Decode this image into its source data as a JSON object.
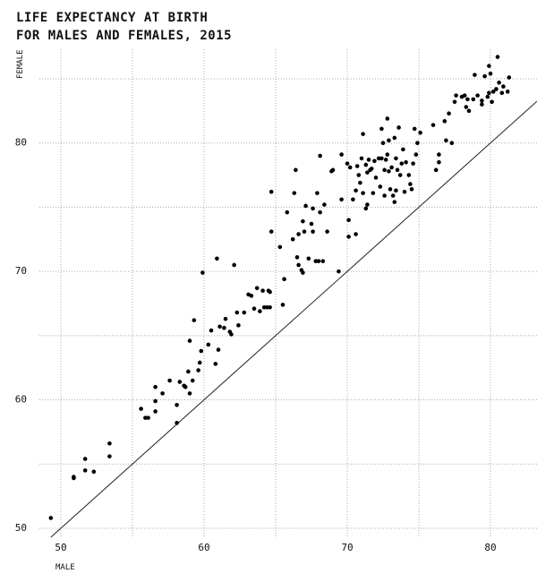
{
  "chart_data": {
    "type": "scatter",
    "title": [
      "LIFE EXPECTANCY AT BIRTH",
      "FOR MALES AND FEMALES, 2015"
    ],
    "x_label": "MALE",
    "y_label": "FEMALE",
    "xlim": [
      48.5,
      83.25
    ],
    "ylim": [
      49.3,
      87.3
    ],
    "xticks": [
      50,
      60,
      70,
      80
    ],
    "yticks": [
      50,
      60,
      70,
      80
    ],
    "grid": true,
    "color": "#000000",
    "x": [
      49.3,
      50.9,
      50.9,
      51.7,
      51.7,
      52.3,
      53.4,
      53.4,
      55.6,
      55.9,
      56.1,
      56.6,
      56.6,
      56.6,
      57.1,
      57.6,
      58.1,
      58.1,
      58.3,
      58.6,
      58.7,
      58.9,
      59.0,
      59.0,
      59.3,
      59.2,
      59.6,
      59.7,
      59.8,
      59.9,
      60.3,
      60.5,
      60.8,
      60.9,
      61.0,
      61.1,
      61.4,
      61.5,
      61.8,
      61.9,
      62.1,
      62.3,
      62.4,
      62.8,
      63.1,
      63.3,
      63.5,
      63.7,
      63.9,
      64.1,
      64.2,
      64.4,
      64.5,
      64.6,
      64.6,
      64.7,
      64.7,
      65.3,
      65.5,
      65.6,
      65.8,
      66.2,
      66.3,
      66.4,
      66.5,
      66.6,
      66.6,
      66.8,
      66.9,
      66.9,
      67.0,
      67.1,
      67.3,
      67.5,
      67.6,
      67.6,
      67.8,
      67.9,
      68.0,
      68.1,
      68.1,
      68.3,
      68.4,
      68.6,
      68.9,
      69.0,
      69.4,
      69.6,
      69.6,
      70.0,
      70.1,
      70.1,
      70.2,
      70.4,
      70.6,
      70.6,
      70.7,
      70.8,
      70.9,
      71.0,
      71.1,
      71.1,
      71.3,
      71.3,
      71.4,
      71.4,
      71.5,
      71.6,
      71.7,
      71.8,
      71.9,
      72.0,
      72.2,
      72.3,
      72.4,
      72.4,
      72.5,
      72.6,
      72.6,
      72.7,
      72.8,
      72.8,
      72.9,
      72.9,
      73.0,
      73.1,
      73.2,
      73.3,
      73.3,
      73.4,
      73.4,
      73.5,
      73.6,
      73.7,
      73.8,
      73.9,
      74.0,
      74.1,
      74.3,
      74.4,
      74.5,
      74.6,
      74.7,
      74.8,
      74.9,
      75.1,
      76.0,
      76.2,
      76.4,
      76.4,
      76.8,
      76.9,
      77.1,
      77.3,
      77.5,
      77.6,
      78.0,
      78.2,
      78.3,
      78.4,
      78.5,
      78.8,
      78.9,
      79.1,
      79.4,
      79.4,
      79.6,
      79.8,
      79.9,
      79.9,
      80.0,
      80.1,
      80.2,
      80.4,
      80.5,
      80.6,
      80.8,
      80.9,
      81.2,
      81.3
    ],
    "values": [
      50.8,
      54.0,
      53.9,
      55.4,
      54.5,
      54.4,
      56.6,
      55.6,
      59.3,
      58.6,
      58.6,
      59.1,
      59.9,
      61.0,
      60.5,
      61.5,
      59.6,
      58.2,
      61.4,
      61.1,
      61.0,
      62.2,
      60.5,
      64.6,
      66.2,
      61.5,
      62.3,
      62.9,
      63.8,
      69.9,
      64.3,
      65.4,
      62.8,
      71.0,
      63.9,
      65.7,
      65.6,
      66.3,
      65.3,
      65.1,
      70.5,
      66.8,
      65.8,
      66.8,
      68.2,
      68.1,
      67.1,
      68.7,
      66.9,
      68.5,
      67.2,
      67.2,
      68.5,
      68.4,
      67.2,
      76.2,
      73.1,
      71.9,
      67.4,
      69.4,
      74.6,
      72.5,
      76.1,
      77.9,
      71.1,
      72.9,
      70.5,
      70.1,
      73.9,
      69.9,
      73.1,
      75.1,
      71.0,
      73.7,
      73.1,
      74.9,
      70.8,
      76.1,
      70.8,
      79.0,
      74.6,
      70.8,
      75.2,
      73.1,
      77.8,
      77.9,
      70.0,
      79.1,
      75.6,
      78.4,
      74.0,
      72.7,
      78.1,
      75.6,
      72.9,
      76.3,
      78.2,
      77.5,
      76.9,
      78.8,
      76.1,
      80.7,
      74.9,
      78.3,
      77.7,
      75.2,
      78.7,
      77.9,
      78.0,
      76.1,
      78.6,
      77.3,
      78.8,
      76.6,
      81.1,
      78.8,
      80.0,
      77.9,
      75.9,
      78.7,
      81.9,
      79.1,
      77.8,
      80.2,
      76.4,
      78.1,
      75.9,
      80.4,
      75.4,
      78.8,
      76.3,
      77.9,
      81.2,
      77.5,
      78.4,
      79.5,
      76.2,
      78.5,
      77.5,
      76.8,
      76.4,
      78.4,
      81.1,
      79.1,
      80.0,
      80.8,
      81.4,
      77.9,
      79.1,
      78.5,
      81.7,
      80.2,
      82.3,
      80.0,
      83.2,
      83.7,
      83.6,
      83.7,
      82.8,
      83.4,
      82.5,
      83.4,
      85.3,
      83.7,
      83.3,
      83.0,
      85.2,
      83.6,
      83.9,
      86.0,
      85.4,
      83.2,
      84.0,
      84.2,
      86.7,
      84.7,
      83.9,
      84.4,
      84.0,
      85.1
    ]
  }
}
